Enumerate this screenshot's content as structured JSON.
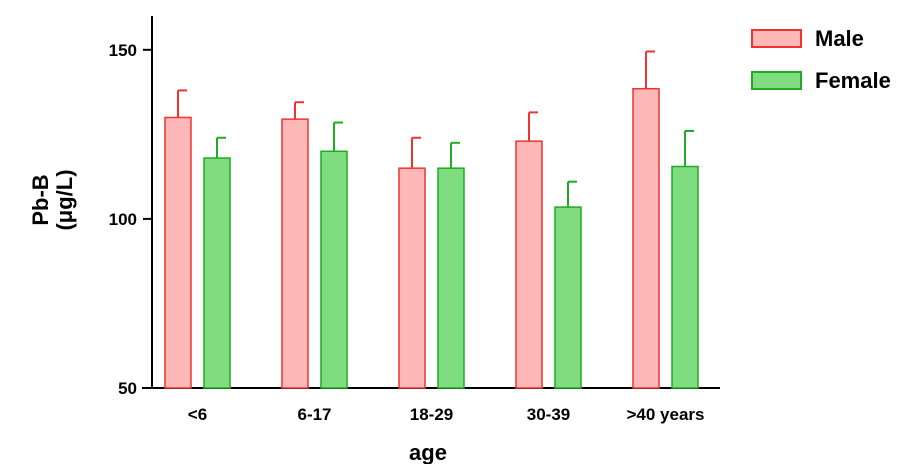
{
  "chart_data": {
    "type": "bar",
    "categories": [
      "<6",
      "6-17",
      "18-29",
      "30-39",
      ">40 years"
    ],
    "series": [
      {
        "name": "Male",
        "values": [
          130,
          129.5,
          115,
          123,
          138.5
        ],
        "errors": [
          8,
          5,
          9,
          8.5,
          11
        ],
        "fill": "#ffb8b8",
        "stroke": "#ee3333"
      },
      {
        "name": "Female",
        "values": [
          118,
          120,
          115,
          103.5,
          115.5
        ],
        "errors": [
          6,
          8.5,
          7.5,
          7.5,
          10.5
        ],
        "fill": "#7fdd7f",
        "stroke": "#22aa22"
      }
    ],
    "xlabel": "age",
    "ylabel_line1": "Pb-B",
    "ylabel_line2": "(μg/L)",
    "ylim": [
      50,
      160
    ],
    "yticks": [
      50,
      100,
      150
    ],
    "legend_position": "top-right",
    "grid": false
  }
}
